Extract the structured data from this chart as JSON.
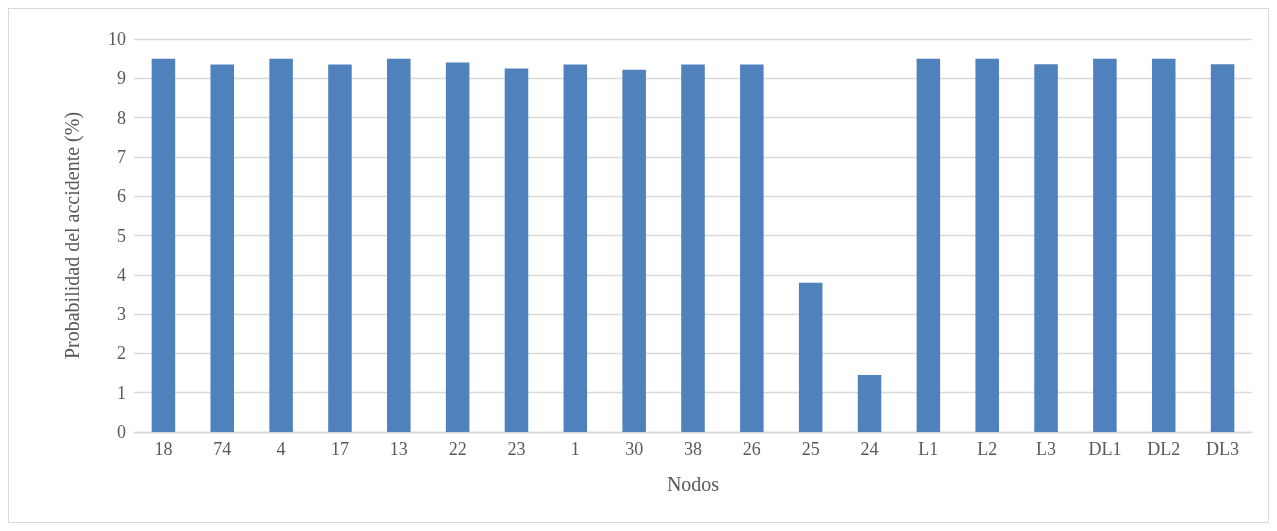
{
  "chart_data": {
    "type": "bar",
    "xlabel": "Nodos",
    "ylabel": "Probabilidad del accidente (%)",
    "categories": [
      "18",
      "74",
      "4",
      "17",
      "13",
      "22",
      "23",
      "1",
      "30",
      "38",
      "26",
      "25",
      "24",
      "L1",
      "L2",
      "L3",
      "DL1",
      "DL2",
      "DL3"
    ],
    "values": [
      9.5,
      9.35,
      9.5,
      9.35,
      9.5,
      9.4,
      9.25,
      9.35,
      9.22,
      9.35,
      9.35,
      3.8,
      1.45,
      9.5,
      9.5,
      9.36,
      9.5,
      9.5,
      9.36
    ],
    "color": "#4f81bd",
    "ylim": [
      0,
      10
    ],
    "yticks": [
      0,
      1,
      2,
      3,
      4,
      5,
      6,
      7,
      8,
      9,
      10
    ],
    "grid": "y"
  }
}
